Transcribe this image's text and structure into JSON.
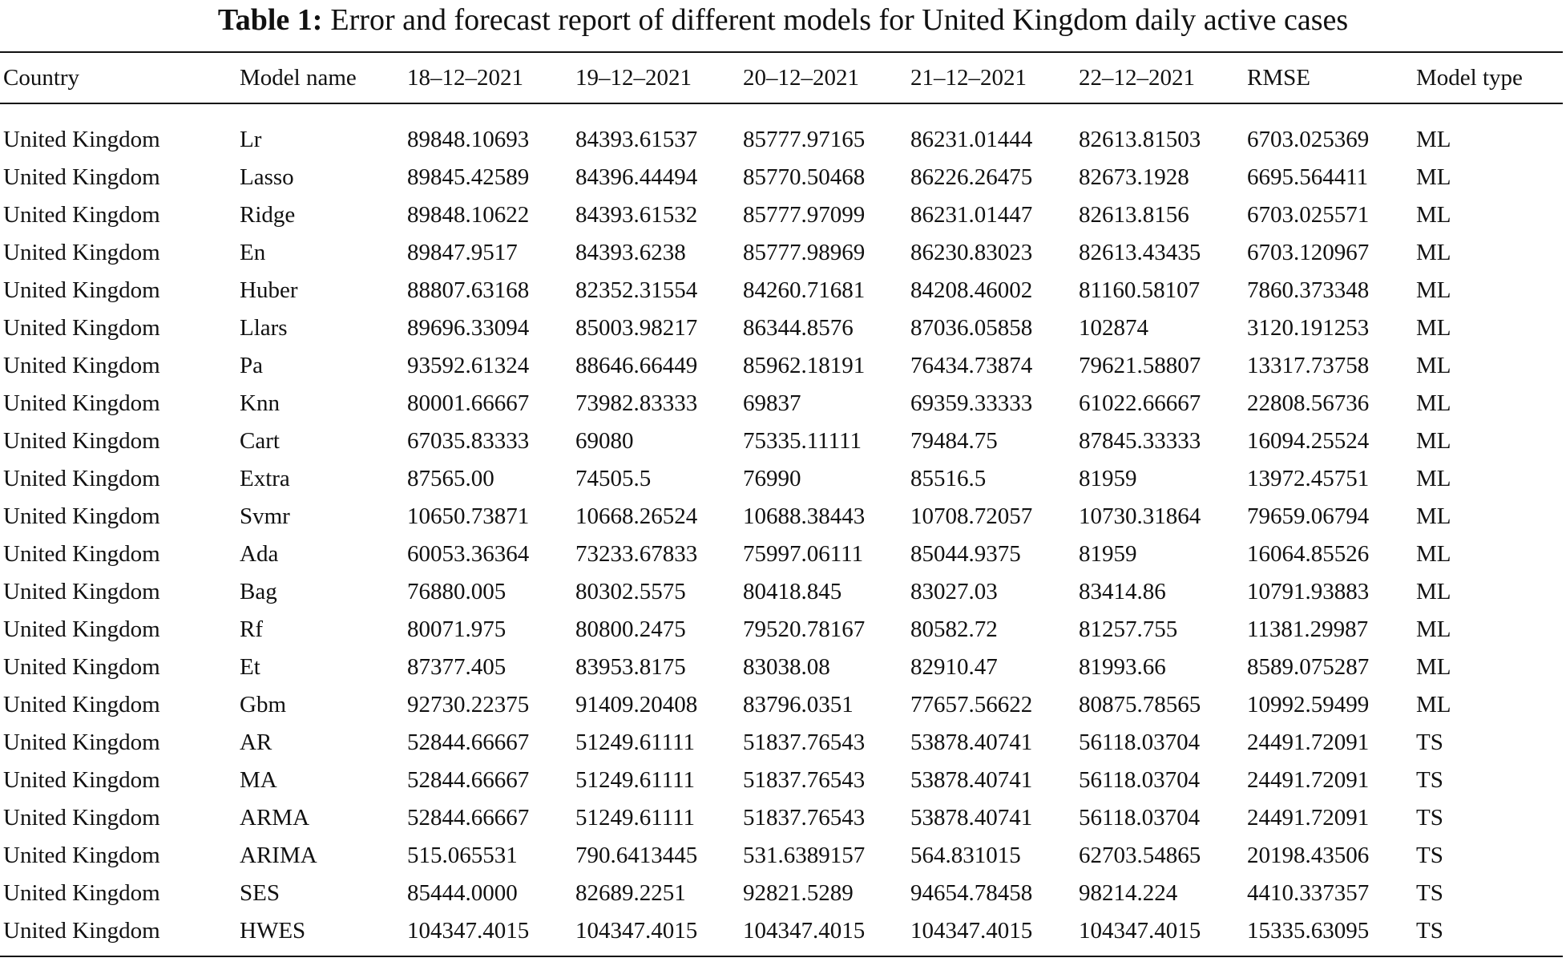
{
  "title": {
    "label": "Table 1:",
    "text": "Error and forecast report of different models for United Kingdom daily active cases"
  },
  "table": {
    "header": [
      "Country",
      "Model name",
      "18–12–2021",
      "19–12–2021",
      "20–12–2021",
      "21–12–2021",
      "22–12–2021",
      "RMSE",
      "Model type"
    ],
    "rows": [
      [
        "United Kingdom",
        "Lr",
        "89848.10693",
        "84393.61537",
        "85777.97165",
        "86231.01444",
        "82613.81503",
        "6703.025369",
        "ML"
      ],
      [
        "United Kingdom",
        "Lasso",
        "89845.42589",
        "84396.44494",
        "85770.50468",
        "86226.26475",
        "82673.1928",
        "6695.564411",
        "ML"
      ],
      [
        "United Kingdom",
        "Ridge",
        "89848.10622",
        "84393.61532",
        "85777.97099",
        "86231.01447",
        "82613.8156",
        "6703.025571",
        "ML"
      ],
      [
        "United Kingdom",
        "En",
        "89847.9517",
        "84393.6238",
        "85777.98969",
        "86230.83023",
        "82613.43435",
        "6703.120967",
        "ML"
      ],
      [
        "United Kingdom",
        "Huber",
        "88807.63168",
        "82352.31554",
        "84260.71681",
        "84208.46002",
        "81160.58107",
        "7860.373348",
        "ML"
      ],
      [
        "United Kingdom",
        "Llars",
        "89696.33094",
        "85003.98217",
        "86344.8576",
        "87036.05858",
        "102874",
        "3120.191253",
        "ML"
      ],
      [
        "United Kingdom",
        "Pa",
        "93592.61324",
        "88646.66449",
        "85962.18191",
        "76434.73874",
        "79621.58807",
        "13317.73758",
        "ML"
      ],
      [
        "United Kingdom",
        "Knn",
        "80001.66667",
        "73982.83333",
        "69837",
        "69359.33333",
        "61022.66667",
        "22808.56736",
        "ML"
      ],
      [
        "United Kingdom",
        "Cart",
        "67035.83333",
        "69080",
        "75335.11111",
        "79484.75",
        "87845.33333",
        "16094.25524",
        "ML"
      ],
      [
        "United Kingdom",
        "Extra",
        "87565.00",
        "74505.5",
        "76990",
        "85516.5",
        "81959",
        "13972.45751",
        "ML"
      ],
      [
        "United Kingdom",
        "Svmr",
        "10650.73871",
        "10668.26524",
        "10688.38443",
        "10708.72057",
        "10730.31864",
        "79659.06794",
        "ML"
      ],
      [
        "United Kingdom",
        "Ada",
        "60053.36364",
        "73233.67833",
        "75997.06111",
        "85044.9375",
        "81959",
        "16064.85526",
        "ML"
      ],
      [
        "United Kingdom",
        "Bag",
        "76880.005",
        "80302.5575",
        "80418.845",
        "83027.03",
        "83414.86",
        "10791.93883",
        "ML"
      ],
      [
        "United Kingdom",
        "Rf",
        "80071.975",
        "80800.2475",
        "79520.78167",
        "80582.72",
        "81257.755",
        "11381.29987",
        "ML"
      ],
      [
        "United Kingdom",
        "Et",
        "87377.405",
        "83953.8175",
        "83038.08",
        "82910.47",
        "81993.66",
        "8589.075287",
        "ML"
      ],
      [
        "United Kingdom",
        "Gbm",
        "92730.22375",
        "91409.20408",
        "83796.0351",
        "77657.56622",
        "80875.78565",
        "10992.59499",
        "ML"
      ],
      [
        "United Kingdom",
        "AR",
        "52844.66667",
        "51249.61111",
        "51837.76543",
        "53878.40741",
        "56118.03704",
        "24491.72091",
        "TS"
      ],
      [
        "United Kingdom",
        "MA",
        "52844.66667",
        "51249.61111",
        "51837.76543",
        "53878.40741",
        "56118.03704",
        "24491.72091",
        "TS"
      ],
      [
        "United Kingdom",
        "ARMA",
        "52844.66667",
        "51249.61111",
        "51837.76543",
        "53878.40741",
        "56118.03704",
        "24491.72091",
        "TS"
      ],
      [
        "United Kingdom",
        "ARIMA",
        "515.065531",
        "790.6413445",
        "531.6389157",
        "564.831015",
        "62703.54865",
        "20198.43506",
        "TS"
      ],
      [
        "United Kingdom",
        "SES",
        "85444.0000",
        "82689.2251",
        "92821.5289",
        "94654.78458",
        "98214.224",
        "4410.337357",
        "TS"
      ],
      [
        "United Kingdom",
        "HWES",
        "104347.4015",
        "104347.4015",
        "104347.4015",
        "104347.4015",
        "104347.4015",
        "15335.63095",
        "TS"
      ]
    ]
  }
}
